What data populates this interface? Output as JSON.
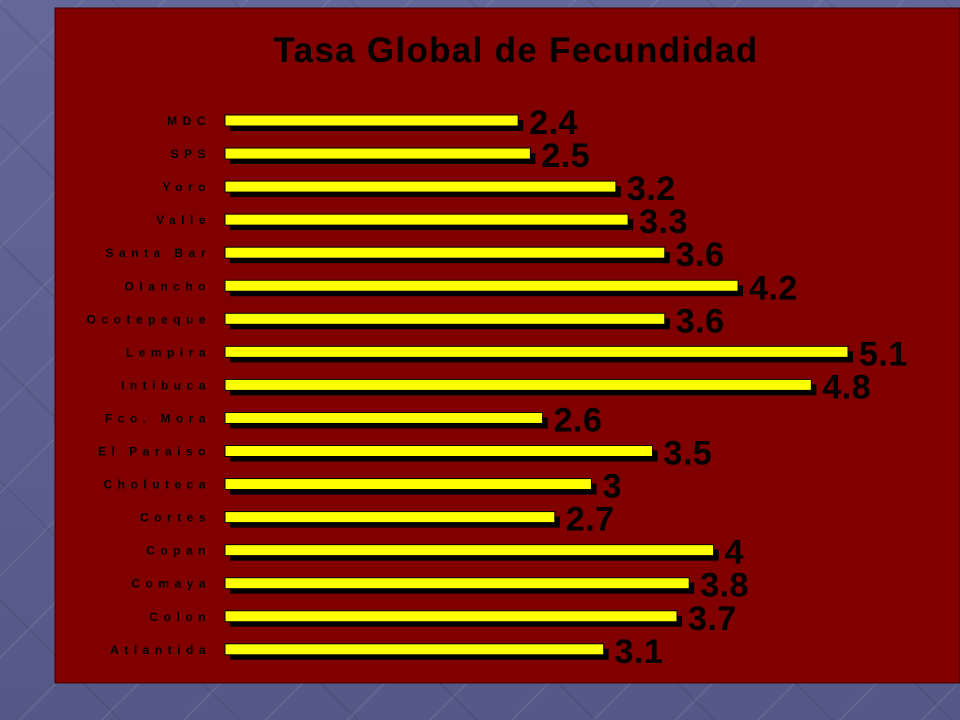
{
  "slide": {
    "background_color": "#5b6092",
    "panel_color": "#800000",
    "panel_border_color": "#3a0000"
  },
  "chart_data": {
    "type": "bar",
    "orientation": "horizontal",
    "title": "Tasa Global de Fecundidad",
    "categories": [
      "MDC",
      "SPS",
      "Yoro",
      "Valle",
      "Santa Bar",
      "Olancho",
      "Ocotepeque",
      "Lempira",
      "Intibuca",
      "Fco. Mora",
      "El Paraiso",
      "Choluteca",
      "Cortes",
      "Copan",
      "Comaya",
      "Colon",
      "Atlantida"
    ],
    "values": [
      2.4,
      2.5,
      3.2,
      3.3,
      3.6,
      4.2,
      3.6,
      5.1,
      4.8,
      2.6,
      3.5,
      3,
      2.7,
      4,
      3.8,
      3.7,
      3.1
    ],
    "xlim": [
      0,
      5.1
    ],
    "grid": false,
    "legend": "none",
    "bar_color": "#ffff00",
    "shadow_color": "#000000",
    "text_color": "#000000"
  }
}
